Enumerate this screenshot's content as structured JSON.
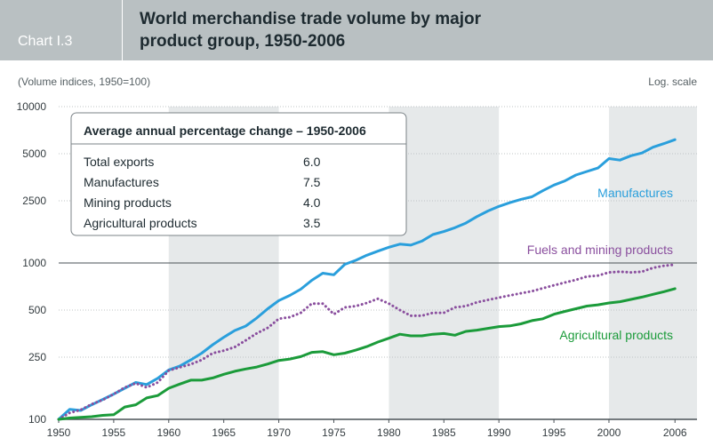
{
  "header": {
    "chart_label": "Chart I.3",
    "title_line1": "World merchandise trade volume by major",
    "title_line2": "product group, 1950-2006"
  },
  "chart_data": {
    "type": "line",
    "title": "World merchandise trade volume by major product group, 1950-2006",
    "subtitle": "(Volume indices, 1950=100)",
    "scale_note": "Log. scale",
    "y_scale": "log",
    "ylim": [
      100,
      10000
    ],
    "y_ticks": [
      100,
      250,
      500,
      1000,
      2500,
      5000,
      10000
    ],
    "y_tick_labels": [
      "100",
      "250",
      "500",
      "1000",
      "2500",
      "5000",
      "10000"
    ],
    "xlim": [
      1950,
      2008
    ],
    "x_ticks": [
      1950,
      1955,
      1960,
      1965,
      1970,
      1975,
      1980,
      1985,
      1990,
      1995,
      2000,
      2006
    ],
    "x_tick_labels": [
      "1950",
      "1955",
      "1960",
      "1965",
      "1970",
      "1975",
      "1980",
      "1985",
      "1990",
      "1995",
      "2000",
      "2006"
    ],
    "shaded_bands": [
      [
        1960,
        1970
      ],
      [
        1980,
        1990
      ],
      [
        2000,
        2008
      ]
    ],
    "grid": true,
    "colors": {
      "manufactures": "#2a9fdc",
      "fuels_mining": "#8a4f9e",
      "agricultural": "#1b9b3a",
      "band": "#e6e9ea",
      "gridline": "#bfc4c6"
    },
    "series": [
      {
        "key": "manufactures",
        "name": "Manufactures",
        "style": "solid",
        "x": [
          1950,
          1951,
          1952,
          1953,
          1954,
          1955,
          1956,
          1957,
          1958,
          1959,
          1960,
          1961,
          1962,
          1963,
          1964,
          1965,
          1966,
          1967,
          1968,
          1969,
          1970,
          1971,
          1972,
          1973,
          1974,
          1975,
          1976,
          1977,
          1978,
          1979,
          1980,
          1981,
          1982,
          1983,
          1984,
          1985,
          1986,
          1987,
          1988,
          1989,
          1990,
          1991,
          1992,
          1993,
          1994,
          1995,
          1996,
          1997,
          1998,
          1999,
          2000,
          2001,
          2002,
          2003,
          2004,
          2005,
          2006
        ],
        "values": [
          100,
          116,
          114,
          124,
          134,
          145,
          158,
          172,
          167,
          183,
          207,
          219,
          240,
          265,
          300,
          335,
          370,
          395,
          445,
          510,
          575,
          620,
          680,
          775,
          860,
          840,
          980,
          1040,
          1120,
          1190,
          1260,
          1320,
          1300,
          1380,
          1520,
          1590,
          1680,
          1800,
          1980,
          2150,
          2300,
          2430,
          2550,
          2650,
          2900,
          3150,
          3350,
          3650,
          3850,
          4050,
          4650,
          4550,
          4850,
          5050,
          5500,
          5800,
          6150
        ]
      },
      {
        "key": "fuels_mining",
        "name": "Fuels and mining products",
        "style": "dotted",
        "x": [
          1950,
          1951,
          1952,
          1953,
          1954,
          1955,
          1956,
          1957,
          1958,
          1959,
          1960,
          1961,
          1962,
          1963,
          1964,
          1965,
          1966,
          1967,
          1968,
          1969,
          1970,
          1971,
          1972,
          1973,
          1974,
          1975,
          1976,
          1977,
          1978,
          1979,
          1980,
          1981,
          1982,
          1983,
          1984,
          1985,
          1986,
          1987,
          1988,
          1989,
          1990,
          1991,
          1992,
          1993,
          1994,
          1995,
          1996,
          1997,
          1998,
          1999,
          2000,
          2001,
          2002,
          2003,
          2004,
          2005,
          2006
        ],
        "values": [
          100,
          110,
          115,
          125,
          133,
          145,
          160,
          170,
          160,
          172,
          205,
          215,
          225,
          240,
          265,
          275,
          290,
          320,
          355,
          385,
          440,
          450,
          480,
          550,
          550,
          470,
          520,
          530,
          555,
          590,
          550,
          500,
          460,
          460,
          480,
          480,
          520,
          530,
          560,
          580,
          600,
          620,
          640,
          660,
          690,
          720,
          750,
          780,
          820,
          830,
          870,
          880,
          870,
          880,
          930,
          960,
          975
        ]
      },
      {
        "key": "agricultural",
        "name": "Agricultural products",
        "style": "solid",
        "x": [
          1950,
          1951,
          1952,
          1953,
          1954,
          1955,
          1956,
          1957,
          1958,
          1959,
          1960,
          1961,
          1962,
          1963,
          1964,
          1965,
          1966,
          1967,
          1968,
          1969,
          1970,
          1971,
          1972,
          1973,
          1974,
          1975,
          1976,
          1977,
          1978,
          1979,
          1980,
          1981,
          1982,
          1983,
          1984,
          1985,
          1986,
          1987,
          1988,
          1989,
          1990,
          1991,
          1992,
          1993,
          1994,
          1995,
          1996,
          1997,
          1998,
          1999,
          2000,
          2001,
          2002,
          2003,
          2004,
          2005,
          2006
        ],
        "values": [
          100,
          102,
          103,
          104,
          106,
          107,
          120,
          124,
          137,
          142,
          158,
          168,
          178,
          178,
          184,
          194,
          203,
          210,
          216,
          226,
          238,
          243,
          252,
          268,
          271,
          259,
          265,
          277,
          292,
          312,
          330,
          350,
          342,
          342,
          350,
          354,
          345,
          365,
          372,
          382,
          392,
          396,
          408,
          428,
          440,
          470,
          490,
          510,
          530,
          540,
          555,
          565,
          585,
          605,
          630,
          655,
          685
        ]
      }
    ],
    "legend_box": {
      "title": "Average annual percentage change – 1950-2006",
      "rows": [
        {
          "label": "Total exports",
          "value": "6.0"
        },
        {
          "label": "Manufactures",
          "value": "7.5"
        },
        {
          "label": "Mining products",
          "value": "4.0"
        },
        {
          "label": "Agricultural products",
          "value": "3.5"
        }
      ]
    }
  }
}
